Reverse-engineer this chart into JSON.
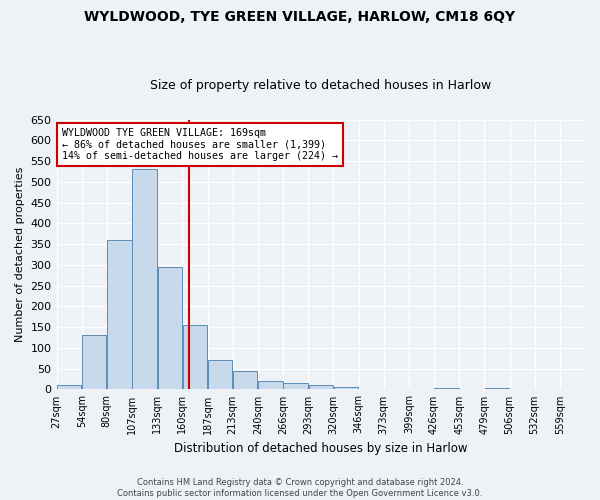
{
  "title_line1": "WYLDWOOD, TYE GREEN VILLAGE, HARLOW, CM18 6QY",
  "title_line2": "Size of property relative to detached houses in Harlow",
  "xlabel": "Distribution of detached houses by size in Harlow",
  "ylabel": "Number of detached properties",
  "bin_labels": [
    "27sqm",
    "54sqm",
    "80sqm",
    "107sqm",
    "133sqm",
    "160sqm",
    "187sqm",
    "213sqm",
    "240sqm",
    "266sqm",
    "293sqm",
    "320sqm",
    "346sqm",
    "373sqm",
    "399sqm",
    "426sqm",
    "453sqm",
    "479sqm",
    "506sqm",
    "532sqm",
    "559sqm"
  ],
  "bar_heights": [
    10,
    130,
    360,
    530,
    295,
    155,
    70,
    45,
    20,
    15,
    10,
    5,
    2,
    0,
    0,
    3,
    0,
    3,
    0,
    0,
    2
  ],
  "bar_color": "#c8d9eb",
  "bar_edge_color": "#5b8db8",
  "ylim": [
    0,
    650
  ],
  "yticks": [
    0,
    50,
    100,
    150,
    200,
    250,
    300,
    350,
    400,
    450,
    500,
    550,
    600,
    650
  ],
  "property_sqm": 169,
  "vline_color": "#cc0000",
  "annotation_line1": "WYLDWOOD TYE GREEN VILLAGE: 169sqm",
  "annotation_line2": "← 86% of detached houses are smaller (1,399)",
  "annotation_line3": "14% of semi-detached houses are larger (224) →",
  "annotation_box_color": "#ffffff",
  "annotation_border_color": "#cc0000",
  "footer_line1": "Contains HM Land Registry data © Crown copyright and database right 2024.",
  "footer_line2": "Contains public sector information licensed under the Open Government Licence v3.0.",
  "background_color": "#eef2f7",
  "grid_color": "#ffffff",
  "bin_width": 27,
  "fig_width": 6.0,
  "fig_height": 5.0,
  "dpi": 100
}
